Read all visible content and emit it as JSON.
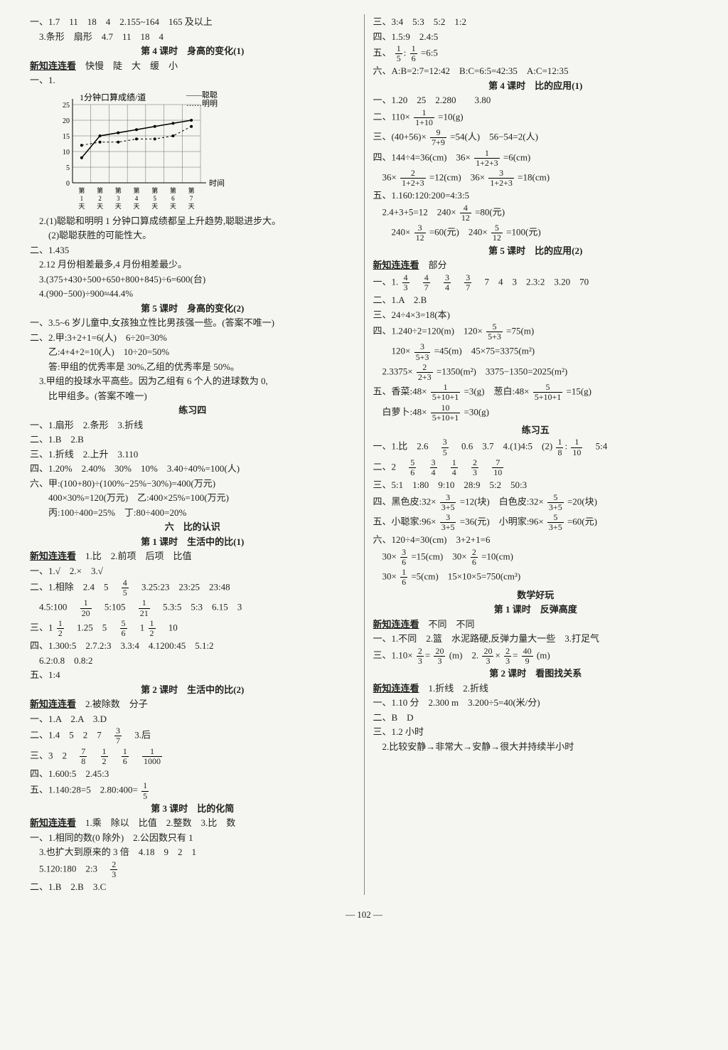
{
  "page_number": "— 102 —",
  "background_color": "#f5f5f2",
  "text_color": "#222222",
  "left": {
    "l1": "一、1.7　11　18　4　2.155~164　165 及以上",
    "l2": "　3.条形　扇形　4.7　11　18　4",
    "h1": "第 4 课时　身高的变化(1)",
    "l3_u": "新知连连看",
    "l3_t": "　快慢　陡　大　缓　小",
    "l4": "一、1.",
    "chart": {
      "title": "1分钟口算成绩/道",
      "legend1": "——聪聪",
      "legend2": "……明明",
      "ylabels": [
        "25",
        "20",
        "15",
        "10",
        "5",
        "0"
      ],
      "xlabels": [
        "第1天",
        "第2天",
        "第3天",
        "第4天",
        "第5天",
        "第6天",
        "第7天"
      ],
      "xaxis_label": "时间",
      "series_cong": [
        8,
        15,
        16,
        17,
        18,
        19,
        20
      ],
      "series_ming": [
        12,
        13,
        13,
        14,
        14,
        15,
        18
      ],
      "grid_color": "#666",
      "line_color": "#000"
    },
    "l5": "　2.(1)聪聪和明明 1 分钟口算成绩都呈上升趋势,聪聪进步大。",
    "l6": "　　(2)聪聪获胜的可能性大。",
    "l7": "二、1.435",
    "l8": "　2.12 月份相差最多,4 月份相差最少。",
    "l9": "　3.(375+430+500+650+800+845)÷6=600(台)",
    "l10": "　4.(900−500)÷900≈44.4%",
    "h2": "第 5 课时　身高的变化(2)",
    "l11": "一、3.5~6 岁儿童中,女孩独立性比男孩强一些。(答案不唯一)",
    "l12": "二、2.甲:3+2+1=6(人)　6÷20=30%",
    "l13": "　　乙:4+4+2=10(人)　10÷20=50%",
    "l14": "　　答:甲组的优秀率是 30%,乙组的优秀率是 50%。",
    "l15": "　3.甲组的投球水平高些。因为乙组有 6 个人的进球数为 0,",
    "l16": "　　比甲组多。(答案不唯一)",
    "h3": "练习四",
    "l17": "一、1.扇形　2.条形　3.折线",
    "l18": "二、1.B　2.B",
    "l19": "三、1.折线　2.上升　3.110",
    "l20": "四、1.20%　2.40%　30%　10%　3.40÷40%=100(人)",
    "l21": "六、甲:(100+80)÷(100%−25%−30%)=400(万元)",
    "l22": "　　400×30%=120(万元)　乙:400×25%=100(万元)",
    "l23": "　　丙:100÷400=25%　丁:80÷400=20%",
    "h4": "六　比的认识",
    "h5": "第 1 课时　生活中的比(1)",
    "l24_u": "新知连连看",
    "l24_t": "　1.比　2.前项　后项　比值",
    "l25": "一、1.√　2.×　3.√",
    "l26a": "二、1.相除　2.4　5　",
    "l26b": "　3.25:23　23:25　23:48",
    "l27a": "　4.5:100　",
    "l27b": "　5:105　",
    "l27c": "　5.3:5　5:3　6.15　3",
    "l28a": "三、1",
    "l28b": "　1.25　5　",
    "l28c": "　1",
    "l28d": "　10",
    "l29": "四、1.300:5　2.7.2:3　3.3:4　4.1200:45　5.1:2",
    "l30": "　6.2:0.8　0.8:2",
    "l31": "五、1:4",
    "h6": "第 2 课时　生活中的比(2)",
    "l32_u": "新知连连看",
    "l32_t": "　2.被除数　分子",
    "l33": "一、1.A　2.A　3.D",
    "l34a": "二、1.4　5　2　7　",
    "l34b": "　3.后",
    "l35a": "三、3　2　",
    "l36": "四、1.600:5　2.45:3",
    "l37a": "五、1.140:28=5　2.80:400=",
    "h7": "第 3 课时　比的化简",
    "l38_u": "新知连连看",
    "l38_t": "　1.乘　除以　比值　2.整数　3.比　数",
    "l39": "一、1.相同的数(0 除外)　2.公因数只有 1",
    "l40": "　3.也扩大到原来的 3 倍　4.18　9　2　1",
    "l41a": "　5.120:180　2:3　",
    "l42": "二、1.B　2.B　3.C"
  },
  "right": {
    "r1": "三、3:4　5:3　5:2　1:2",
    "r2": "四、1.5:9　2.4:5",
    "r3a": "五、",
    "r3b": "=6:5",
    "r4": "六、A:B=2:7=12:42　B:C=6:5=42:35　A:C=12:35",
    "h1": "第 4 课时　比的应用(1)",
    "r5": "一、1.20　25　2.280　　3.80",
    "r6a": "二、110×",
    "r6b": "=10(g)",
    "r7a": "三、(40+56)×",
    "r7b": "=54(人)　56−54=2(人)",
    "r8a": "四、144÷4=36(cm)　36×",
    "r8b": "=6(cm)",
    "r9a": "　36×",
    "r9b": "=12(cm)　36×",
    "r9c": "=18(cm)",
    "r10": "五、1.160:120:200=4:3:5",
    "r11a": "　2.4+3+5=12　240×",
    "r11b": "=80(元)",
    "r12a": "　　240×",
    "r12b": "=60(元)　240×",
    "r12c": "=100(元)",
    "h2": "第 5 课时　比的应用(2)",
    "r13_u": "新知连连看",
    "r13_t": "　部分",
    "r14a": "一、1.",
    "r14b": "　7　4　3　2.3:2　3.20　70",
    "r15": "二、1.A　2.B",
    "r16": "三、24÷4×3=18(本)",
    "r17a": "四、1.240÷2=120(m)　120×",
    "r17b": "=75(m)",
    "r18a": "　　120×",
    "r18b": "=45(m)　45×75=3375(m²)",
    "r19a": "　2.3375×",
    "r19b": "=1350(m²)　3375−1350=2025(m²)",
    "r20a": "五、香菜:48×",
    "r20b": "=3(g)　葱白:48×",
    "r20c": "=15(g)",
    "r21a": "　白萝卜:48×",
    "r21b": "=30(g)",
    "h3": "练习五",
    "r22a": "一、1.比　2.6　",
    "r22b": "　0.6　3.7　4.(1)4:5　(2)",
    "r22c": "　5:4",
    "r23a": "二、2　",
    "r24": "三、5:1　1:80　9:10　28:9　5:2　50:3",
    "r25a": "四、黑色皮:32×",
    "r25b": "=12(块)　白色皮:32×",
    "r25c": "=20(块)",
    "r26a": "五、小聪家:96×",
    "r26b": "=36(元)　小明家:96×",
    "r26c": "=60(元)",
    "r27": "六、120÷4=30(cm)　3+2+1=6",
    "r28a": "　30×",
    "r28b": "=15(cm)　30×",
    "r28c": "=10(cm)",
    "r29a": "　30×",
    "r29b": "=5(cm)　15×10×5=750(cm³)",
    "h4": "数学好玩",
    "h5": "第 1 课时　反弹高度",
    "r30_u": "新知连连看",
    "r30_t": "　不同　不同",
    "r31": "一、1.不同　2.篮　水泥路硬,反弹力量大一些　3.打足气",
    "r32a": "三、1.10×",
    "r32b": "(m)　2.",
    "r32c": "(m)",
    "h6": "第 2 课时　看图找关系",
    "r33_u": "新知连连看",
    "r33_t": "　1.折线　2.折线",
    "r34": "一、1.10 分　2.300 m　3.200÷5=40(米/分)",
    "r35": "二、B　D",
    "r36": "三、1.2 小时",
    "r37": "　2.比较安静→非常大→安静→很大并持续半小时"
  },
  "fractions": {
    "f_4_5": {
      "n": "4",
      "d": "5"
    },
    "f_1_20": {
      "n": "1",
      "d": "20"
    },
    "f_1_21": {
      "n": "1",
      "d": "21"
    },
    "f_1_2": {
      "n": "1",
      "d": "2"
    },
    "f_5_6": {
      "n": "5",
      "d": "6"
    },
    "f_3_7": {
      "n": "3",
      "d": "7"
    },
    "f_7_8": {
      "n": "7",
      "d": "8"
    },
    "f_1_6": {
      "n": "1",
      "d": "6"
    },
    "f_1_1000": {
      "n": "1",
      "d": "1000"
    },
    "f_1_5": {
      "n": "1",
      "d": "5"
    },
    "f_2_3": {
      "n": "2",
      "d": "3"
    },
    "f_1_1p10": {
      "n": "1",
      "d": "1+10"
    },
    "f_9_7p9": {
      "n": "9",
      "d": "7+9"
    },
    "f_1_123": {
      "n": "1",
      "d": "1+2+3"
    },
    "f_2_123": {
      "n": "2",
      "d": "1+2+3"
    },
    "f_3_123": {
      "n": "3",
      "d": "1+2+3"
    },
    "f_4_12": {
      "n": "4",
      "d": "12"
    },
    "f_3_12": {
      "n": "3",
      "d": "12"
    },
    "f_5_12": {
      "n": "5",
      "d": "12"
    },
    "f_4_3": {
      "n": "4",
      "d": "3"
    },
    "f_4_7": {
      "n": "4",
      "d": "7"
    },
    "f_3_4": {
      "n": "3",
      "d": "4"
    },
    "f_5_5p3": {
      "n": "5",
      "d": "5+3"
    },
    "f_3_5p3": {
      "n": "3",
      "d": "5+3"
    },
    "f_2_2p3": {
      "n": "2",
      "d": "2+3"
    },
    "f_1_5101": {
      "n": "1",
      "d": "5+10+1"
    },
    "f_5_5101": {
      "n": "5",
      "d": "5+10+1"
    },
    "f_10_5101": {
      "n": "10",
      "d": "5+10+1"
    },
    "f_3_5": {
      "n": "3",
      "d": "5"
    },
    "f_1_8": {
      "n": "1",
      "d": "8"
    },
    "f_1_10": {
      "n": "1",
      "d": "10"
    },
    "f_1_4": {
      "n": "1",
      "d": "4"
    },
    "f_7_10": {
      "n": "7",
      "d": "10"
    },
    "f_3_3p5": {
      "n": "3",
      "d": "3+5"
    },
    "f_5_3p5": {
      "n": "5",
      "d": "3+5"
    },
    "f_3_6": {
      "n": "3",
      "d": "6"
    },
    "f_2_6": {
      "n": "2",
      "d": "6"
    },
    "f_20_3": {
      "n": "20",
      "d": "3"
    },
    "f_40_9": {
      "n": "40",
      "d": "9"
    }
  }
}
